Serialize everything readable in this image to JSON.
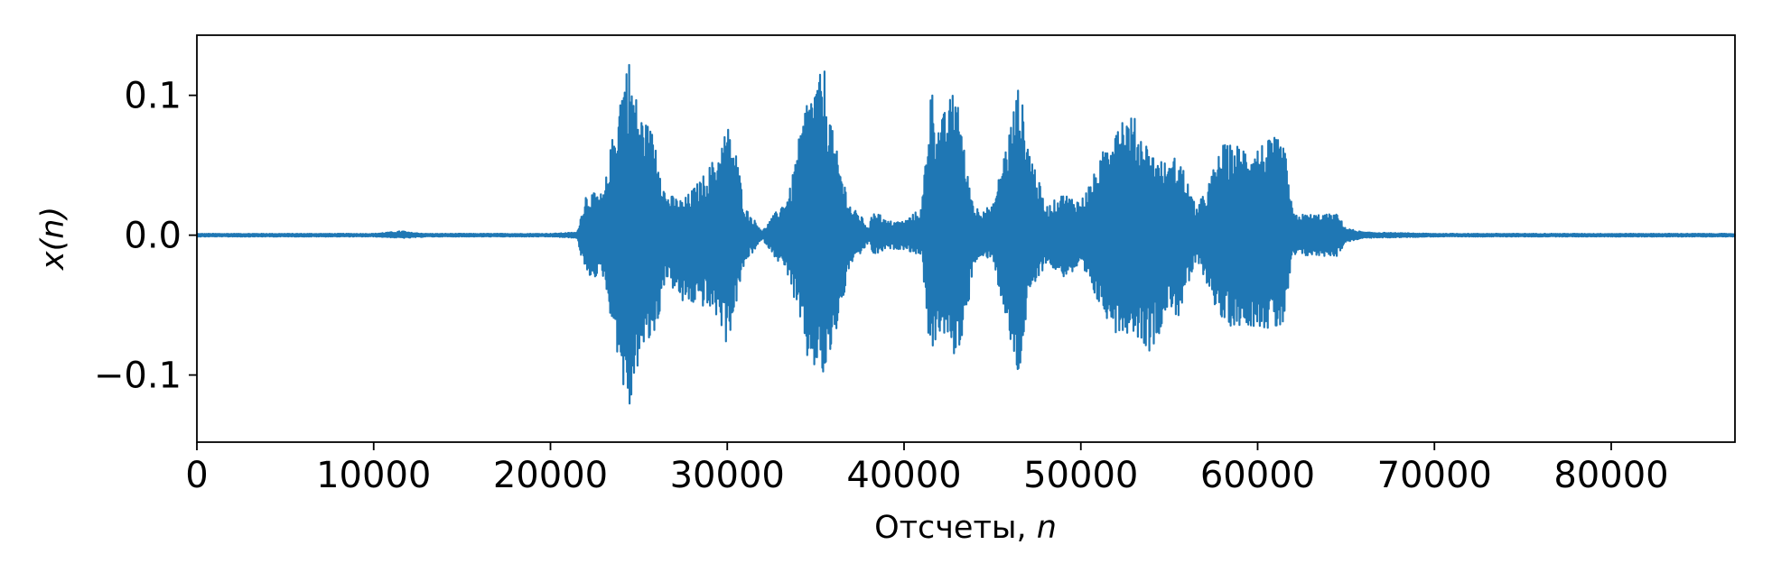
{
  "chart_data": {
    "type": "line",
    "title": "",
    "xlabel_text": "Отсчеты, ",
    "xlabel_var": "n",
    "ylabel_prefix": "x(",
    "ylabel_var": "n",
    "ylabel_suffix": ")",
    "xlim": [
      0,
      87000
    ],
    "ylim": [
      -0.148,
      0.143
    ],
    "xticks": [
      0,
      10000,
      20000,
      30000,
      40000,
      50000,
      60000,
      70000,
      80000
    ],
    "xtick_labels": [
      "0",
      "10000",
      "20000",
      "30000",
      "40000",
      "50000",
      "60000",
      "70000",
      "80000"
    ],
    "yticks": [
      -0.1,
      0.0,
      0.1
    ],
    "ytick_labels": [
      "−0.1",
      "0.0",
      "0.1"
    ],
    "grid": false,
    "legend": "none",
    "line_color": "#1f77b4",
    "series": [
      {
        "x": [
          0,
          10000,
          11700,
          11900,
          13000,
          20000,
          21500,
          22000,
          23000,
          24000,
          24400,
          25000,
          26000,
          26500,
          27500,
          28500,
          29500,
          30000,
          30500,
          31000,
          32000,
          33500,
          34500,
          35500,
          36000,
          37000,
          37500,
          38000,
          38300,
          39000,
          40000,
          41000,
          41500,
          42000,
          43000,
          43500,
          44000,
          45000,
          46000,
          46500,
          47000,
          48000,
          49000,
          50000,
          51000,
          52000,
          53000,
          54000,
          55000,
          55500,
          56500,
          57000,
          58000,
          59000,
          60000,
          61000,
          61500,
          62000,
          63000,
          64000,
          64500,
          65000,
          66000,
          70000,
          87000
        ],
        "upper": [
          0.001,
          0.001,
          0.003,
          0.002,
          0.001,
          0.001,
          0.002,
          0.03,
          0.03,
          0.11,
          0.13,
          0.09,
          0.07,
          0.03,
          0.025,
          0.04,
          0.06,
          0.08,
          0.06,
          0.02,
          0.003,
          0.03,
          0.1,
          0.12,
          0.07,
          0.02,
          0.015,
          0.005,
          0.02,
          0.01,
          0.01,
          0.02,
          0.11,
          0.08,
          0.11,
          0.05,
          0.02,
          0.02,
          0.08,
          0.11,
          0.07,
          0.02,
          0.03,
          0.025,
          0.05,
          0.09,
          0.085,
          0.06,
          0.05,
          0.06,
          0.02,
          0.03,
          0.065,
          0.065,
          0.065,
          0.07,
          0.065,
          0.015,
          0.015,
          0.015,
          0.015,
          0.005,
          0.002,
          0.001,
          0.001
        ],
        "lower": [
          -0.001,
          -0.001,
          -0.002,
          -0.002,
          -0.001,
          -0.001,
          -0.002,
          -0.03,
          -0.03,
          -0.1,
          -0.135,
          -0.09,
          -0.07,
          -0.03,
          -0.05,
          -0.05,
          -0.06,
          -0.08,
          -0.05,
          -0.02,
          -0.003,
          -0.03,
          -0.09,
          -0.105,
          -0.08,
          -0.02,
          -0.015,
          -0.005,
          -0.015,
          -0.01,
          -0.01,
          -0.015,
          -0.09,
          -0.07,
          -0.09,
          -0.06,
          -0.02,
          -0.015,
          -0.08,
          -0.105,
          -0.05,
          -0.02,
          -0.03,
          -0.025,
          -0.05,
          -0.07,
          -0.07,
          -0.085,
          -0.05,
          -0.06,
          -0.02,
          -0.03,
          -0.065,
          -0.065,
          -0.065,
          -0.07,
          -0.065,
          -0.015,
          -0.015,
          -0.015,
          -0.015,
          -0.005,
          -0.002,
          -0.001,
          -0.001
        ]
      }
    ]
  }
}
